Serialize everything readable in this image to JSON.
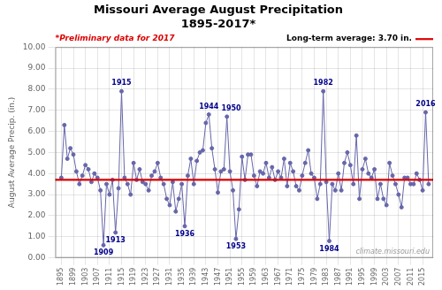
{
  "chart_data": {
    "type": "line",
    "title": [
      "Missouri Average August Precipitation",
      "1895-2017*"
    ],
    "subtitle": [
      "*Preliminary data for 2017",
      "Long-term average: 3.70 in."
    ],
    "ylabel": "August Average Precip. (in.)",
    "x": [
      1895,
      1896,
      1897,
      1898,
      1899,
      1900,
      1901,
      1902,
      1903,
      1904,
      1905,
      1906,
      1907,
      1908,
      1909,
      1910,
      1911,
      1912,
      1913,
      1914,
      1915,
      1916,
      1917,
      1918,
      1919,
      1920,
      1921,
      1922,
      1923,
      1924,
      1925,
      1926,
      1927,
      1928,
      1929,
      1930,
      1931,
      1932,
      1933,
      1934,
      1935,
      1936,
      1937,
      1938,
      1939,
      1940,
      1941,
      1942,
      1943,
      1944,
      1945,
      1946,
      1947,
      1948,
      1949,
      1950,
      1951,
      1952,
      1953,
      1954,
      1955,
      1956,
      1957,
      1958,
      1959,
      1960,
      1961,
      1962,
      1963,
      1964,
      1965,
      1966,
      1967,
      1968,
      1969,
      1970,
      1971,
      1972,
      1973,
      1974,
      1975,
      1976,
      1977,
      1978,
      1979,
      1980,
      1981,
      1982,
      1983,
      1984,
      1985,
      1986,
      1987,
      1988,
      1989,
      1990,
      1991,
      1992,
      1993,
      1994,
      1995,
      1996,
      1997,
      1998,
      1999,
      2000,
      2001,
      2002,
      2003,
      2004,
      2005,
      2006,
      2007,
      2008,
      2009,
      2010,
      2011,
      2012,
      2013,
      2014,
      2015,
      2016,
      2017
    ],
    "values": [
      3.8,
      6.3,
      4.7,
      5.2,
      4.9,
      4.1,
      3.5,
      3.9,
      4.4,
      4.2,
      3.6,
      4.0,
      3.8,
      3.2,
      0.6,
      3.5,
      3.0,
      3.7,
      1.2,
      3.3,
      7.9,
      3.8,
      3.5,
      3.0,
      4.5,
      3.7,
      4.2,
      3.6,
      3.5,
      3.2,
      3.9,
      4.1,
      4.5,
      3.8,
      3.5,
      2.8,
      2.5,
      3.6,
      2.2,
      2.8,
      3.5,
      1.5,
      3.9,
      4.7,
      3.5,
      4.6,
      5.0,
      5.1,
      6.4,
      6.8,
      5.2,
      4.2,
      3.1,
      4.1,
      4.2,
      6.7,
      4.1,
      3.2,
      0.9,
      2.3,
      4.8,
      3.7,
      4.9,
      4.9,
      3.9,
      3.4,
      4.1,
      4.0,
      4.5,
      3.8,
      4.3,
      3.7,
      4.1,
      3.8,
      4.7,
      3.4,
      4.5,
      4.1,
      3.4,
      3.2,
      3.9,
      4.5,
      5.1,
      4.0,
      3.8,
      2.8,
      3.5,
      7.9,
      3.6,
      0.8,
      3.5,
      3.2,
      4.0,
      3.2,
      4.5,
      5.0,
      4.4,
      3.5,
      5.8,
      2.8,
      4.2,
      4.7,
      4.0,
      3.8,
      4.2,
      2.8,
      3.5,
      2.8,
      2.5,
      4.5,
      3.9,
      3.5,
      3.0,
      2.4,
      3.8,
      3.8,
      3.5,
      3.5,
      4.0,
      3.7,
      3.2,
      6.9,
      3.5
    ],
    "color": "#6666AA",
    "marker": "circle",
    "xlim": [
      1893,
      2018.5
    ],
    "xticks": [
      1895,
      1899,
      1903,
      1907,
      1911,
      1915,
      1919,
      1923,
      1927,
      1931,
      1935,
      1939,
      1943,
      1947,
      1951,
      1955,
      1959,
      1963,
      1967,
      1971,
      1975,
      1979,
      1983,
      1987,
      1991,
      1995,
      1999,
      2003,
      2007,
      2011,
      2015
    ],
    "ylim": [
      0.0,
      10.0
    ],
    "yticks": [
      {
        "value": 0.0,
        "label": "0.00"
      },
      {
        "value": 1.0,
        "label": "1.00"
      },
      {
        "value": 2.0,
        "label": "2.00"
      },
      {
        "value": 3.0,
        "label": "3.00"
      },
      {
        "value": 4.0,
        "label": "4.00"
      },
      {
        "value": 5.0,
        "label": "5.00"
      },
      {
        "value": 6.0,
        "label": "6.00"
      },
      {
        "value": 7.0,
        "label": "7.00"
      },
      {
        "value": 8.0,
        "label": "8.00"
      },
      {
        "value": 9.0,
        "label": "9.00"
      },
      {
        "value": 10.0,
        "label": "10.00"
      }
    ],
    "grid": true,
    "reference_line": {
      "value": 3.7,
      "color": "#DD0000"
    },
    "annotations": [
      {
        "x": 1915,
        "y": 7.9,
        "text": "1915"
      },
      {
        "x": 1909,
        "y": 0.6,
        "text": "1909"
      },
      {
        "x": 1913,
        "y": 1.2,
        "text": "1913"
      },
      {
        "x": 1944,
        "y": 6.8,
        "text": "1944"
      },
      {
        "x": 1950,
        "y": 6.7,
        "text": "1950"
      },
      {
        "x": 1936,
        "y": 1.5,
        "text": "1936"
      },
      {
        "x": 1953,
        "y": 0.9,
        "text": "1953"
      },
      {
        "x": 1982,
        "y": 7.9,
        "text": "1982"
      },
      {
        "x": 1984,
        "y": 0.8,
        "text": "1984"
      },
      {
        "x": 2016,
        "y": 6.9,
        "text": "2016"
      },
      {
        "text": "climate.missouri.edu"
      }
    ]
  }
}
